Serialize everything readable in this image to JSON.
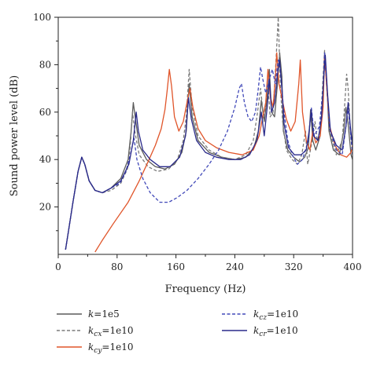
{
  "chart_data": {
    "type": "line",
    "title": "",
    "xlabel": "Frequency (Hz)",
    "ylabel": "Sound power level (dB)",
    "xlim": [
      0,
      400
    ],
    "ylim": [
      0,
      100
    ],
    "xticks": [
      0,
      80,
      160,
      240,
      320,
      400
    ],
    "yticks": [
      20,
      40,
      60,
      80,
      100
    ],
    "grid": false,
    "legend_position": "bottom",
    "series": [
      {
        "name": "k=1e5",
        "legend_main": "k",
        "legend_sub": "",
        "legend_value": "=1e5",
        "color": "#5a5a5a",
        "dash": "solid",
        "points": [
          [
            10,
            2
          ],
          [
            14,
            10
          ],
          [
            20,
            22
          ],
          [
            27,
            35
          ],
          [
            32,
            41
          ],
          [
            36,
            38
          ],
          [
            42,
            31
          ],
          [
            50,
            27
          ],
          [
            60,
            26
          ],
          [
            72,
            28
          ],
          [
            85,
            32
          ],
          [
            95,
            40
          ],
          [
            99,
            52
          ],
          [
            102,
            64
          ],
          [
            105,
            57
          ],
          [
            110,
            46
          ],
          [
            120,
            40
          ],
          [
            132,
            37
          ],
          [
            145,
            36
          ],
          [
            158,
            38
          ],
          [
            168,
            43
          ],
          [
            174,
            52
          ],
          [
            178,
            72
          ],
          [
            182,
            58
          ],
          [
            190,
            48
          ],
          [
            205,
            43
          ],
          [
            222,
            41
          ],
          [
            240,
            40
          ],
          [
            255,
            41
          ],
          [
            266,
            45
          ],
          [
            272,
            52
          ],
          [
            276,
            65
          ],
          [
            280,
            56
          ],
          [
            284,
            66
          ],
          [
            287,
            78
          ],
          [
            290,
            60
          ],
          [
            294,
            58
          ],
          [
            298,
            72
          ],
          [
            301,
            85
          ],
          [
            304,
            75
          ],
          [
            306,
            52
          ],
          [
            312,
            44
          ],
          [
            320,
            41
          ],
          [
            328,
            39
          ],
          [
            335,
            41
          ],
          [
            340,
            45
          ],
          [
            343,
            61
          ],
          [
            346,
            48
          ],
          [
            350,
            44
          ],
          [
            356,
            50
          ],
          [
            360,
            70
          ],
          [
            362,
            85
          ],
          [
            365,
            72
          ],
          [
            368,
            52
          ],
          [
            374,
            44
          ],
          [
            382,
            42
          ],
          [
            388,
            52
          ],
          [
            391,
            62
          ],
          [
            394,
            55
          ],
          [
            398,
            42
          ],
          [
            400,
            40
          ]
        ]
      },
      {
        "name": "kcx=1e10",
        "legend_main": "k",
        "legend_sub": "cx",
        "legend_value": "=1e10",
        "color": "#7a7a7a",
        "dash": "dashed",
        "points": [
          [
            10,
            2
          ],
          [
            14,
            10
          ],
          [
            20,
            22
          ],
          [
            27,
            35
          ],
          [
            32,
            41
          ],
          [
            36,
            38
          ],
          [
            42,
            31
          ],
          [
            50,
            27
          ],
          [
            60,
            26
          ],
          [
            72,
            27
          ],
          [
            85,
            30
          ],
          [
            94,
            36
          ],
          [
            98,
            46
          ],
          [
            101,
            60
          ],
          [
            104,
            52
          ],
          [
            110,
            42
          ],
          [
            122,
            37
          ],
          [
            135,
            35
          ],
          [
            150,
            36
          ],
          [
            162,
            40
          ],
          [
            170,
            48
          ],
          [
            174,
            58
          ],
          [
            178,
            78
          ],
          [
            182,
            62
          ],
          [
            190,
            50
          ],
          [
            205,
            44
          ],
          [
            222,
            41
          ],
          [
            240,
            40
          ],
          [
            255,
            42
          ],
          [
            265,
            48
          ],
          [
            270,
            58
          ],
          [
            275,
            70
          ],
          [
            279,
            58
          ],
          [
            282,
            64
          ],
          [
            285,
            72
          ],
          [
            288,
            58
          ],
          [
            292,
            60
          ],
          [
            296,
            82
          ],
          [
            299,
            100
          ],
          [
            302,
            70
          ],
          [
            305,
            56
          ],
          [
            310,
            44
          ],
          [
            318,
            40
          ],
          [
            325,
            38
          ],
          [
            331,
            42
          ],
          [
            336,
            52
          ],
          [
            339,
            38
          ],
          [
            344,
            46
          ],
          [
            349,
            56
          ],
          [
            352,
            48
          ],
          [
            356,
            52
          ],
          [
            360,
            75
          ],
          [
            362,
            86
          ],
          [
            365,
            70
          ],
          [
            369,
            52
          ],
          [
            378,
            42
          ],
          [
            386,
            48
          ],
          [
            390,
            66
          ],
          [
            392,
            76
          ],
          [
            394,
            70
          ],
          [
            397,
            52
          ],
          [
            400,
            46
          ]
        ]
      },
      {
        "name": "kcy=1e10",
        "legend_main": "k",
        "legend_sub": "cy",
        "legend_value": "=1e10",
        "color": "#e0552a",
        "dash": "solid",
        "points": [
          [
            50,
            1
          ],
          [
            60,
            6
          ],
          [
            75,
            13
          ],
          [
            95,
            22
          ],
          [
            110,
            31
          ],
          [
            122,
            39
          ],
          [
            132,
            46
          ],
          [
            140,
            53
          ],
          [
            145,
            61
          ],
          [
            148,
            69
          ],
          [
            151,
            78
          ],
          [
            154,
            71
          ],
          [
            158,
            58
          ],
          [
            164,
            52
          ],
          [
            170,
            56
          ],
          [
            175,
            64
          ],
          [
            179,
            70
          ],
          [
            183,
            62
          ],
          [
            190,
            53
          ],
          [
            200,
            48
          ],
          [
            215,
            45
          ],
          [
            232,
            43
          ],
          [
            250,
            42
          ],
          [
            265,
            44
          ],
          [
            273,
            50
          ],
          [
            278,
            58
          ],
          [
            282,
            64
          ],
          [
            285,
            78
          ],
          [
            288,
            67
          ],
          [
            292,
            62
          ],
          [
            295,
            74
          ],
          [
            297,
            85
          ],
          [
            300,
            72
          ],
          [
            304,
            66
          ],
          [
            310,
            57
          ],
          [
            316,
            52
          ],
          [
            322,
            56
          ],
          [
            327,
            72
          ],
          [
            329,
            82
          ],
          [
            332,
            60
          ],
          [
            337,
            48
          ],
          [
            342,
            44
          ],
          [
            346,
            52
          ],
          [
            350,
            47
          ],
          [
            356,
            50
          ],
          [
            360,
            62
          ],
          [
            362,
            84
          ],
          [
            365,
            70
          ],
          [
            369,
            54
          ],
          [
            376,
            46
          ],
          [
            384,
            42
          ],
          [
            392,
            41
          ],
          [
            398,
            43
          ],
          [
            400,
            46
          ]
        ]
      },
      {
        "name": "kcz=1e10",
        "legend_main": "k",
        "legend_sub": "cz",
        "legend_value": "=1e10",
        "color": "#4048b8",
        "dash": "dashed",
        "points": [
          [
            10,
            2
          ],
          [
            14,
            10
          ],
          [
            20,
            22
          ],
          [
            27,
            35
          ],
          [
            32,
            41
          ],
          [
            36,
            38
          ],
          [
            42,
            31
          ],
          [
            50,
            27
          ],
          [
            60,
            26
          ],
          [
            72,
            28
          ],
          [
            84,
            30
          ],
          [
            92,
            35
          ],
          [
            98,
            42
          ],
          [
            103,
            49
          ],
          [
            107,
            40
          ],
          [
            115,
            32
          ],
          [
            125,
            26
          ],
          [
            138,
            22
          ],
          [
            150,
            22
          ],
          [
            162,
            24
          ],
          [
            175,
            27
          ],
          [
            190,
            32
          ],
          [
            205,
            38
          ],
          [
            218,
            44
          ],
          [
            230,
            52
          ],
          [
            240,
            62
          ],
          [
            246,
            70
          ],
          [
            249,
            72
          ],
          [
            253,
            64
          ],
          [
            258,
            58
          ],
          [
            263,
            56
          ],
          [
            268,
            60
          ],
          [
            272,
            70
          ],
          [
            275,
            79
          ],
          [
            278,
            74
          ],
          [
            282,
            68
          ],
          [
            287,
            74
          ],
          [
            291,
            78
          ],
          [
            295,
            72
          ],
          [
            299,
            82
          ],
          [
            302,
            78
          ],
          [
            306,
            62
          ],
          [
            312,
            48
          ],
          [
            318,
            42
          ],
          [
            325,
            38
          ],
          [
            332,
            40
          ],
          [
            340,
            48
          ],
          [
            344,
            62
          ],
          [
            348,
            50
          ],
          [
            355,
            54
          ],
          [
            360,
            70
          ],
          [
            362,
            85
          ],
          [
            365,
            72
          ],
          [
            369,
            53
          ],
          [
            378,
            44
          ],
          [
            386,
            42
          ],
          [
            391,
            54
          ],
          [
            394,
            62
          ],
          [
            397,
            52
          ],
          [
            400,
            42
          ]
        ]
      },
      {
        "name": "kcr=1e10",
        "legend_main": "k",
        "legend_sub": "cr",
        "legend_value": "=1e10",
        "color": "#2a2a8a",
        "dash": "solid",
        "points": [
          [
            10,
            2
          ],
          [
            14,
            10
          ],
          [
            20,
            22
          ],
          [
            27,
            35
          ],
          [
            32,
            41
          ],
          [
            36,
            38
          ],
          [
            42,
            31
          ],
          [
            50,
            27
          ],
          [
            60,
            26
          ],
          [
            72,
            28
          ],
          [
            85,
            31
          ],
          [
            96,
            38
          ],
          [
            102,
            48
          ],
          [
            106,
            60
          ],
          [
            109,
            52
          ],
          [
            115,
            44
          ],
          [
            125,
            40
          ],
          [
            138,
            37
          ],
          [
            152,
            37
          ],
          [
            165,
            41
          ],
          [
            173,
            50
          ],
          [
            177,
            66
          ],
          [
            181,
            57
          ],
          [
            188,
            48
          ],
          [
            200,
            43
          ],
          [
            215,
            41
          ],
          [
            232,
            40
          ],
          [
            248,
            40
          ],
          [
            260,
            42
          ],
          [
            270,
            48
          ],
          [
            276,
            60
          ],
          [
            280,
            50
          ],
          [
            284,
            62
          ],
          [
            287,
            74
          ],
          [
            290,
            60
          ],
          [
            294,
            64
          ],
          [
            298,
            76
          ],
          [
            301,
            82
          ],
          [
            304,
            70
          ],
          [
            307,
            55
          ],
          [
            313,
            45
          ],
          [
            321,
            42
          ],
          [
            330,
            42
          ],
          [
            337,
            44
          ],
          [
            341,
            52
          ],
          [
            344,
            61
          ],
          [
            347,
            50
          ],
          [
            353,
            48
          ],
          [
            358,
            58
          ],
          [
            361,
            75
          ],
          [
            363,
            84
          ],
          [
            366,
            68
          ],
          [
            370,
            52
          ],
          [
            378,
            46
          ],
          [
            386,
            44
          ],
          [
            391,
            54
          ],
          [
            394,
            64
          ],
          [
            397,
            54
          ],
          [
            400,
            46
          ]
        ]
      }
    ]
  }
}
